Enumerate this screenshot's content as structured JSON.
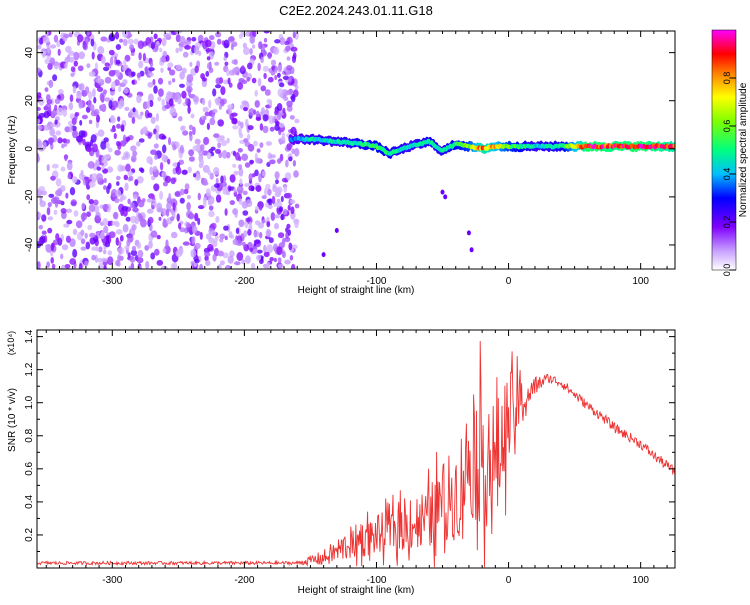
{
  "chart_data": [
    {
      "type": "heatmap",
      "title": "C2E2.2024.243.01.11.G18",
      "xlabel": "Height of straight line (km)",
      "ylabel": "Frequency (Hz)",
      "xlim": [
        -357,
        126
      ],
      "ylim": [
        -50,
        49
      ],
      "x_ticks": [
        -300,
        -200,
        -100,
        0,
        100
      ],
      "y_ticks": [
        -40,
        -20,
        0,
        20,
        40
      ],
      "colorbar": {
        "label": "Normalized spectral amplitude",
        "range": [
          0,
          1
        ],
        "ticks": [
          "0.0",
          "0.2",
          "0.4",
          "0.6",
          "0.8"
        ],
        "colors": [
          "#ffffff",
          "#7f00ff",
          "#0000ff",
          "#00bfff",
          "#00ff7f",
          "#80ff00",
          "#ffff00",
          "#ff8000",
          "#ff0000",
          "#ff00ff"
        ]
      },
      "noise_region_x": [
        -357,
        -160
      ],
      "signal_trace": {
        "x": [
          -165,
          -150,
          -130,
          -110,
          -100,
          -90,
          -75,
          -60,
          -50,
          -40,
          -30,
          -20,
          -10,
          0,
          20,
          40,
          60,
          80,
          100,
          126
        ],
        "freq": [
          4,
          4,
          3,
          2,
          1,
          -2,
          1,
          3,
          -1,
          2,
          1,
          0,
          1,
          1,
          1,
          1,
          1,
          1,
          1,
          1
        ],
        "amp": [
          0.35,
          0.45,
          0.45,
          0.5,
          0.55,
          0.5,
          0.45,
          0.5,
          0.45,
          0.55,
          0.6,
          0.85,
          0.75,
          0.6,
          0.45,
          0.5,
          0.95,
          0.9,
          0.95,
          0.85
        ]
      }
    },
    {
      "type": "line",
      "xlabel": "Height of straight line (km)",
      "ylabel": "SNR (10 * v/v)",
      "y_multiplier": "(x10⁴)",
      "xlim": [
        -357,
        126
      ],
      "ylim": [
        0,
        1.44
      ],
      "x_ticks": [
        -300,
        -200,
        -100,
        0,
        100
      ],
      "y_ticks": [
        "0.2",
        "0.4",
        "0.6",
        "0.8",
        "1.0",
        "1.2",
        "1.4"
      ],
      "color": "#ee3333",
      "series": [
        {
          "x": [
            -357,
            -300,
            -200,
            -160,
            -140,
            -130,
            -120,
            -100,
            -80,
            -60,
            -50,
            -40,
            -30,
            -20,
            -10,
            0,
            10,
            20,
            30,
            40,
            50,
            60,
            70,
            80,
            90,
            100,
            110,
            120,
            126
          ],
          "y": [
            0.03,
            0.03,
            0.03,
            0.03,
            0.06,
            0.1,
            0.15,
            0.2,
            0.25,
            0.3,
            0.4,
            0.45,
            0.65,
            0.7,
            0.6,
            0.9,
            1.0,
            1.1,
            1.15,
            1.12,
            1.05,
            0.98,
            0.92,
            0.85,
            0.8,
            0.75,
            0.68,
            0.62,
            0.58
          ],
          "spread": [
            0.01,
            0.01,
            0.01,
            0.01,
            0.05,
            0.08,
            0.1,
            0.12,
            0.15,
            0.2,
            0.25,
            0.28,
            0.35,
            0.45,
            0.4,
            0.3,
            0.15,
            0.06,
            0.03,
            0.03,
            0.03,
            0.03,
            0.03,
            0.03,
            0.03,
            0.03,
            0.03,
            0.03,
            0.03
          ]
        }
      ]
    }
  ]
}
